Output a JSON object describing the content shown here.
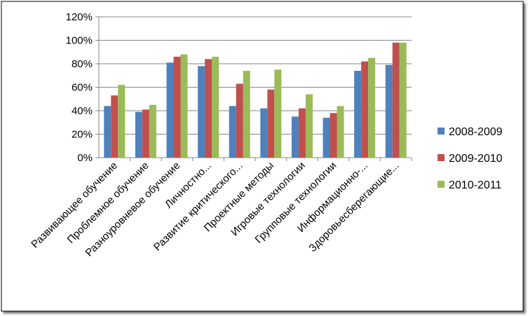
{
  "chart_data": {
    "type": "bar",
    "categories": [
      "Развивающее обучение",
      "Проблемное обучение",
      "Разноуровневое обучение",
      "Личностно...",
      "Развитие критического...",
      "Проектные методы",
      "Игровые технологии",
      "Групповые технологии",
      "Информационно-...",
      "Здоровьесберегающие..."
    ],
    "series": [
      {
        "name": "2008-2009",
        "color": "#4F81BD",
        "values": [
          44,
          39,
          81,
          78,
          44,
          42,
          35,
          34,
          74,
          79
        ]
      },
      {
        "name": "2009-2010",
        "color": "#C0504D",
        "values": [
          53,
          41,
          86,
          84,
          63,
          58,
          42,
          38,
          82,
          98
        ]
      },
      {
        "name": "2010-2011",
        "color": "#9BBB59",
        "values": [
          62,
          45,
          88,
          86,
          74,
          75,
          54,
          44,
          85,
          98
        ]
      }
    ],
    "yticks": [
      "0%",
      "20%",
      "40%",
      "60%",
      "80%",
      "100%",
      "120%"
    ],
    "ylim": [
      0,
      120
    ],
    "grid": true,
    "legend_position": "right"
  }
}
